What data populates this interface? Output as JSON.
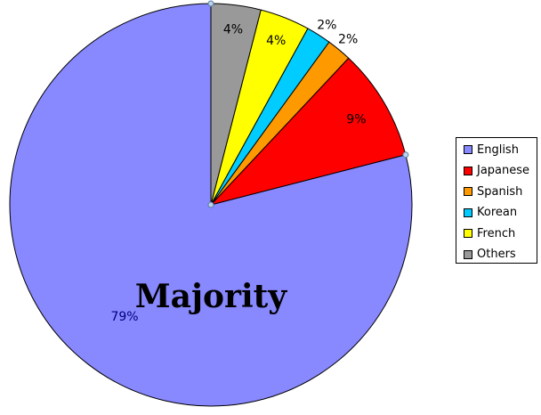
{
  "chart_data": {
    "type": "pie",
    "title": "",
    "start_angle_deg": 0,
    "direction": "counterclockwise",
    "slices": [
      {
        "name": "English",
        "value": 79,
        "label": "79%",
        "color": "#8888ff"
      },
      {
        "name": "Japanese",
        "value": 9,
        "label": "9%",
        "color": "#ff0000"
      },
      {
        "name": "Spanish",
        "value": 2,
        "label": "2%",
        "color": "#ff9900"
      },
      {
        "name": "Korean",
        "value": 2,
        "label": "2%",
        "color": "#00ccff"
      },
      {
        "name": "French",
        "value": 4,
        "label": "4%",
        "color": "#ffff00"
      },
      {
        "name": "Others",
        "value": 4,
        "label": "4%",
        "color": "#999999"
      }
    ],
    "annotation": "Majority",
    "legend_position": "right"
  }
}
